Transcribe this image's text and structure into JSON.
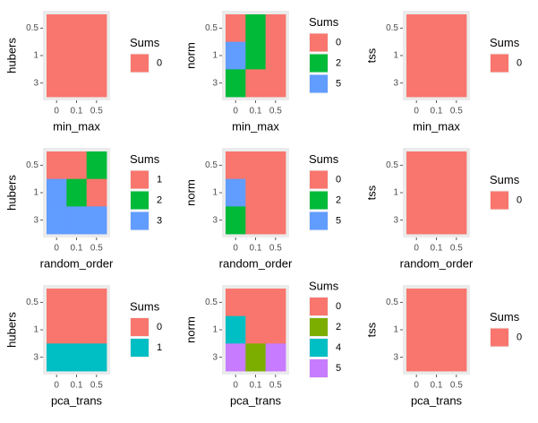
{
  "chart_data": {
    "type": "heatmap",
    "legend_position": "right",
    "panels": [
      {
        "x_label": "min_max",
        "y_label": "hubers",
        "x_categories": [
          "0",
          "0.1",
          "0.5"
        ],
        "y_categories": [
          "0.5",
          "1",
          "3"
        ],
        "legend_title": "Sums",
        "legend": [
          {
            "label": "0",
            "color": "#F8766D"
          }
        ],
        "cells": [
          [
            0,
            0,
            0
          ],
          [
            0,
            0,
            0
          ],
          [
            0,
            0,
            0
          ]
        ]
      },
      {
        "x_label": "min_max",
        "y_label": "norm",
        "x_categories": [
          "0",
          "0.1",
          "0.5"
        ],
        "y_categories": [
          "0.5",
          "1",
          "3"
        ],
        "legend_title": "Sums",
        "legend": [
          {
            "label": "0",
            "color": "#F8766D"
          },
          {
            "label": "2",
            "color": "#00BA38"
          },
          {
            "label": "5",
            "color": "#619CFF"
          }
        ],
        "cells": [
          [
            0,
            2,
            0
          ],
          [
            5,
            2,
            0
          ],
          [
            2,
            0,
            0
          ]
        ]
      },
      {
        "x_label": "min_max",
        "y_label": "tss",
        "x_categories": [
          "0",
          "0.1",
          "0.5"
        ],
        "y_categories": [
          "0.5",
          "1",
          "3"
        ],
        "legend_title": "Sums",
        "legend": [
          {
            "label": "0",
            "color": "#F8766D"
          }
        ],
        "cells": [
          [
            0,
            0,
            0
          ],
          [
            0,
            0,
            0
          ],
          [
            0,
            0,
            0
          ]
        ]
      },
      {
        "x_label": "random_order",
        "y_label": "hubers",
        "x_categories": [
          "0",
          "0.1",
          "0.5"
        ],
        "y_categories": [
          "0.5",
          "1",
          "3"
        ],
        "legend_title": "Sums",
        "legend": [
          {
            "label": "1",
            "color": "#F8766D"
          },
          {
            "label": "2",
            "color": "#00BA38"
          },
          {
            "label": "3",
            "color": "#619CFF"
          }
        ],
        "cells": [
          [
            1,
            1,
            2
          ],
          [
            3,
            2,
            1
          ],
          [
            3,
            3,
            3
          ]
        ]
      },
      {
        "x_label": "random_order",
        "y_label": "norm",
        "x_categories": [
          "0",
          "0.1",
          "0.5"
        ],
        "y_categories": [
          "0.5",
          "1",
          "3"
        ],
        "legend_title": "Sums",
        "legend": [
          {
            "label": "0",
            "color": "#F8766D"
          },
          {
            "label": "2",
            "color": "#00BA38"
          },
          {
            "label": "5",
            "color": "#619CFF"
          }
        ],
        "cells": [
          [
            0,
            0,
            0
          ],
          [
            5,
            0,
            0
          ],
          [
            2,
            0,
            0
          ]
        ]
      },
      {
        "x_label": "random_order",
        "y_label": "tss",
        "x_categories": [
          "0",
          "0.1",
          "0.5"
        ],
        "y_categories": [
          "0.5",
          "1",
          "3"
        ],
        "legend_title": "Sums",
        "legend": [
          {
            "label": "0",
            "color": "#F8766D"
          }
        ],
        "cells": [
          [
            0,
            0,
            0
          ],
          [
            0,
            0,
            0
          ],
          [
            0,
            0,
            0
          ]
        ]
      },
      {
        "x_label": "pca_trans",
        "y_label": "hubers",
        "x_categories": [
          "0",
          "0.1",
          "0.5"
        ],
        "y_categories": [
          "0.5",
          "1",
          "3"
        ],
        "legend_title": "Sums",
        "legend": [
          {
            "label": "0",
            "color": "#F8766D"
          },
          {
            "label": "1",
            "color": "#00BFC4"
          }
        ],
        "cells": [
          [
            0,
            0,
            0
          ],
          [
            0,
            0,
            0
          ],
          [
            1,
            1,
            1
          ]
        ]
      },
      {
        "x_label": "pca_trans",
        "y_label": "norm",
        "x_categories": [
          "0",
          "0.1",
          "0.5"
        ],
        "y_categories": [
          "0.5",
          "1",
          "3"
        ],
        "legend_title": "Sums",
        "legend": [
          {
            "label": "0",
            "color": "#F8766D"
          },
          {
            "label": "2",
            "color": "#7CAE00"
          },
          {
            "label": "4",
            "color": "#00BFC4"
          },
          {
            "label": "5",
            "color": "#C77CFF"
          }
        ],
        "cells": [
          [
            0,
            0,
            0
          ],
          [
            4,
            0,
            0
          ],
          [
            5,
            2,
            5
          ]
        ]
      },
      {
        "x_label": "pca_trans",
        "y_label": "tss",
        "x_categories": [
          "0",
          "0.1",
          "0.5"
        ],
        "y_categories": [
          "0.5",
          "1",
          "3"
        ],
        "legend_title": "Sums",
        "legend": [
          {
            "label": "0",
            "color": "#F8766D"
          }
        ],
        "cells": [
          [
            0,
            0,
            0
          ],
          [
            0,
            0,
            0
          ],
          [
            0,
            0,
            0
          ]
        ]
      }
    ]
  }
}
